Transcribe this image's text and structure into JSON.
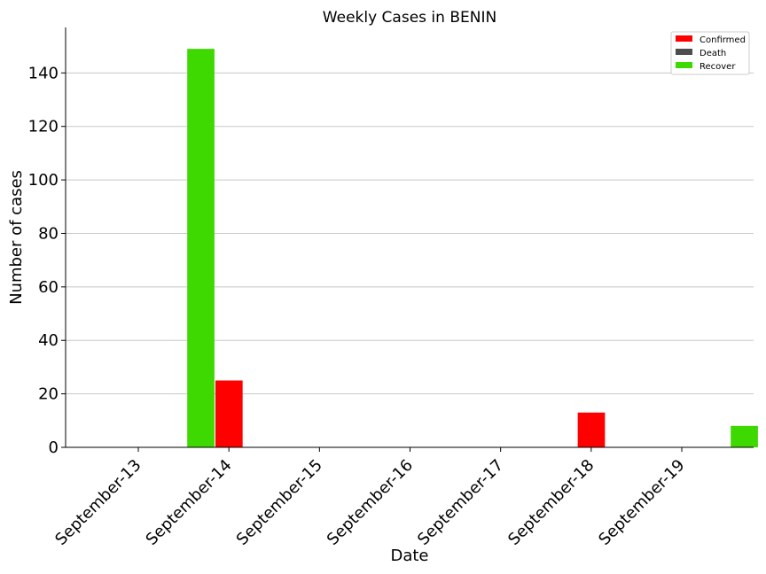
{
  "chart_data": {
    "type": "bar",
    "title": "Weekly Cases in BENIN",
    "xlabel": "Date",
    "ylabel": "Number of cases",
    "categories": [
      "September-13",
      "September-14",
      "September-15",
      "September-16",
      "September-17",
      "September-18",
      "September-19"
    ],
    "series": [
      {
        "name": "Confirmed",
        "color": "#ff0000",
        "values": [
          0,
          25,
          0,
          0,
          0,
          13,
          0
        ]
      },
      {
        "name": "Death",
        "color": "#4d4d4d",
        "values": [
          0,
          0,
          0,
          0,
          0,
          0,
          0
        ]
      },
      {
        "name": "Recover",
        "color": "#3dd900",
        "values": [
          149,
          0,
          0,
          0,
          0,
          0,
          8
        ]
      }
    ],
    "yticks": [
      0,
      20,
      40,
      60,
      80,
      100,
      120,
      140
    ],
    "ylim": [
      0,
      157
    ],
    "grid": "horizontal",
    "legend_position": "top-right"
  }
}
